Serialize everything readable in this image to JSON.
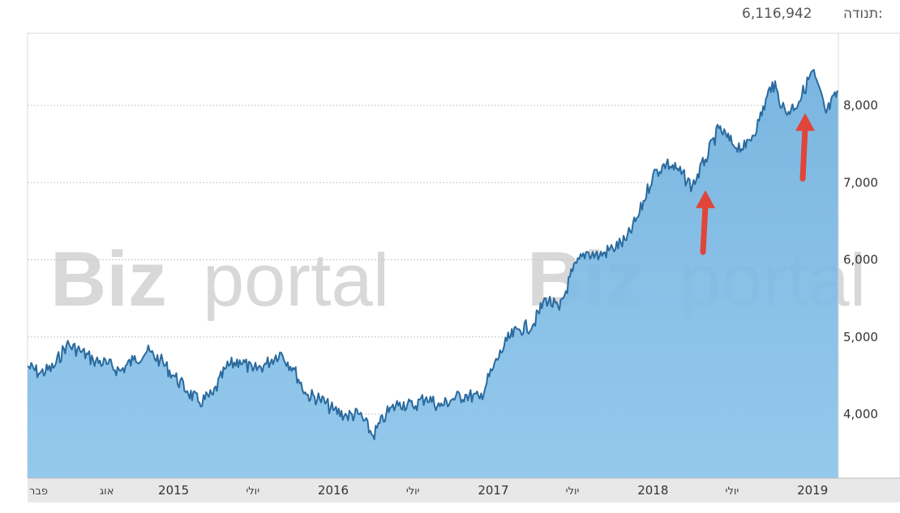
{
  "header": {
    "label": "תנודה:",
    "value": "6,116,942"
  },
  "watermark": {
    "bold": "Biz",
    "thin": "portal"
  },
  "colors": {
    "area_fill": "#8cc4ea",
    "line": "#2a6a9e",
    "arrow": "#e0453a",
    "gridline": "#c8c8c8",
    "axis_band": "#e8e8e8"
  },
  "chart_data": {
    "type": "area",
    "title": "",
    "xlabel": "",
    "ylabel": "",
    "ylim": [
      3300,
      8700
    ],
    "y_ticks": [
      {
        "value": 4000,
        "label": "4,000"
      },
      {
        "value": 5000,
        "label": "5,000"
      },
      {
        "value": 6000,
        "label": "6,000"
      },
      {
        "value": 7000,
        "label": "7,000"
      },
      {
        "value": 8000,
        "label": "8,000"
      }
    ],
    "x_range": [
      "2014-02-01",
      "2019-03-01"
    ],
    "x_ticks": [
      {
        "date": "2014-02-01",
        "label": "פבר",
        "kind": "month"
      },
      {
        "date": "2014-08-01",
        "label": "אוג",
        "kind": "month"
      },
      {
        "date": "2015-01-01",
        "label": "2015",
        "kind": "year"
      },
      {
        "date": "2015-07-01",
        "label": "יולי",
        "kind": "month"
      },
      {
        "date": "2016-01-01",
        "label": "2016",
        "kind": "year"
      },
      {
        "date": "2016-07-01",
        "label": "יולי",
        "kind": "month"
      },
      {
        "date": "2017-01-01",
        "label": "2017",
        "kind": "year"
      },
      {
        "date": "2017-07-01",
        "label": "יולי",
        "kind": "month"
      },
      {
        "date": "2018-01-01",
        "label": "2018",
        "kind": "year"
      },
      {
        "date": "2018-07-01",
        "label": "יולי",
        "kind": "month"
      },
      {
        "date": "2019-01-01",
        "label": "2019",
        "kind": "year"
      }
    ],
    "grid": true,
    "legend": "none",
    "series": [
      {
        "points": [
          [
            "2014-02-01",
            4620
          ],
          [
            "2014-03-01",
            4530
          ],
          [
            "2014-04-01",
            4600
          ],
          [
            "2014-05-01",
            4900
          ],
          [
            "2014-06-01",
            4820
          ],
          [
            "2014-07-01",
            4700
          ],
          [
            "2014-08-01",
            4650
          ],
          [
            "2014-09-01",
            4560
          ],
          [
            "2014-10-01",
            4700
          ],
          [
            "2014-11-01",
            4810
          ],
          [
            "2014-12-01",
            4700
          ],
          [
            "2015-01-01",
            4500
          ],
          [
            "2015-02-01",
            4300
          ],
          [
            "2015-03-01",
            4150
          ],
          [
            "2015-04-01",
            4250
          ],
          [
            "2015-05-01",
            4600
          ],
          [
            "2015-06-01",
            4700
          ],
          [
            "2015-07-01",
            4560
          ],
          [
            "2015-08-01",
            4650
          ],
          [
            "2015-09-01",
            4800
          ],
          [
            "2015-10-01",
            4600
          ],
          [
            "2015-11-01",
            4250
          ],
          [
            "2015-12-01",
            4200
          ],
          [
            "2016-01-01",
            4050
          ],
          [
            "2016-02-01",
            3980
          ],
          [
            "2016-03-01",
            4000
          ],
          [
            "2016-04-01",
            3720
          ],
          [
            "2016-05-01",
            4000
          ],
          [
            "2016-06-01",
            4150
          ],
          [
            "2016-07-01",
            4100
          ],
          [
            "2016-08-01",
            4220
          ],
          [
            "2016-09-01",
            4100
          ],
          [
            "2016-10-01",
            4200
          ],
          [
            "2016-11-01",
            4250
          ],
          [
            "2016-12-01",
            4200
          ],
          [
            "2017-01-01",
            4600
          ],
          [
            "2017-02-01",
            4950
          ],
          [
            "2017-03-01",
            5100
          ],
          [
            "2017-04-01",
            5150
          ],
          [
            "2017-05-01",
            5500
          ],
          [
            "2017-06-01",
            5350
          ],
          [
            "2017-07-01",
            5850
          ],
          [
            "2017-08-01",
            6100
          ],
          [
            "2017-09-01",
            6050
          ],
          [
            "2017-10-01",
            6150
          ],
          [
            "2017-11-01",
            6250
          ],
          [
            "2017-12-01",
            6600
          ],
          [
            "2018-01-01",
            7100
          ],
          [
            "2018-02-01",
            7250
          ],
          [
            "2018-03-01",
            7150
          ],
          [
            "2018-04-01",
            6950
          ],
          [
            "2018-05-01",
            7300
          ],
          [
            "2018-06-01",
            7700
          ],
          [
            "2018-07-01",
            7500
          ],
          [
            "2018-08-01",
            7450
          ],
          [
            "2018-09-01",
            7800
          ],
          [
            "2018-10-01",
            8300
          ],
          [
            "2018-11-01",
            7900
          ],
          [
            "2018-12-01",
            8050
          ],
          [
            "2019-01-01",
            8450
          ],
          [
            "2019-02-01",
            7900
          ],
          [
            "2019-03-01",
            8180
          ]
        ]
      }
    ],
    "annotations": [
      {
        "type": "arrow",
        "date": "2018-05-01",
        "from": 6100,
        "to": 6900
      },
      {
        "type": "arrow",
        "date": "2018-12-15",
        "from": 7050,
        "to": 7900
      }
    ]
  }
}
